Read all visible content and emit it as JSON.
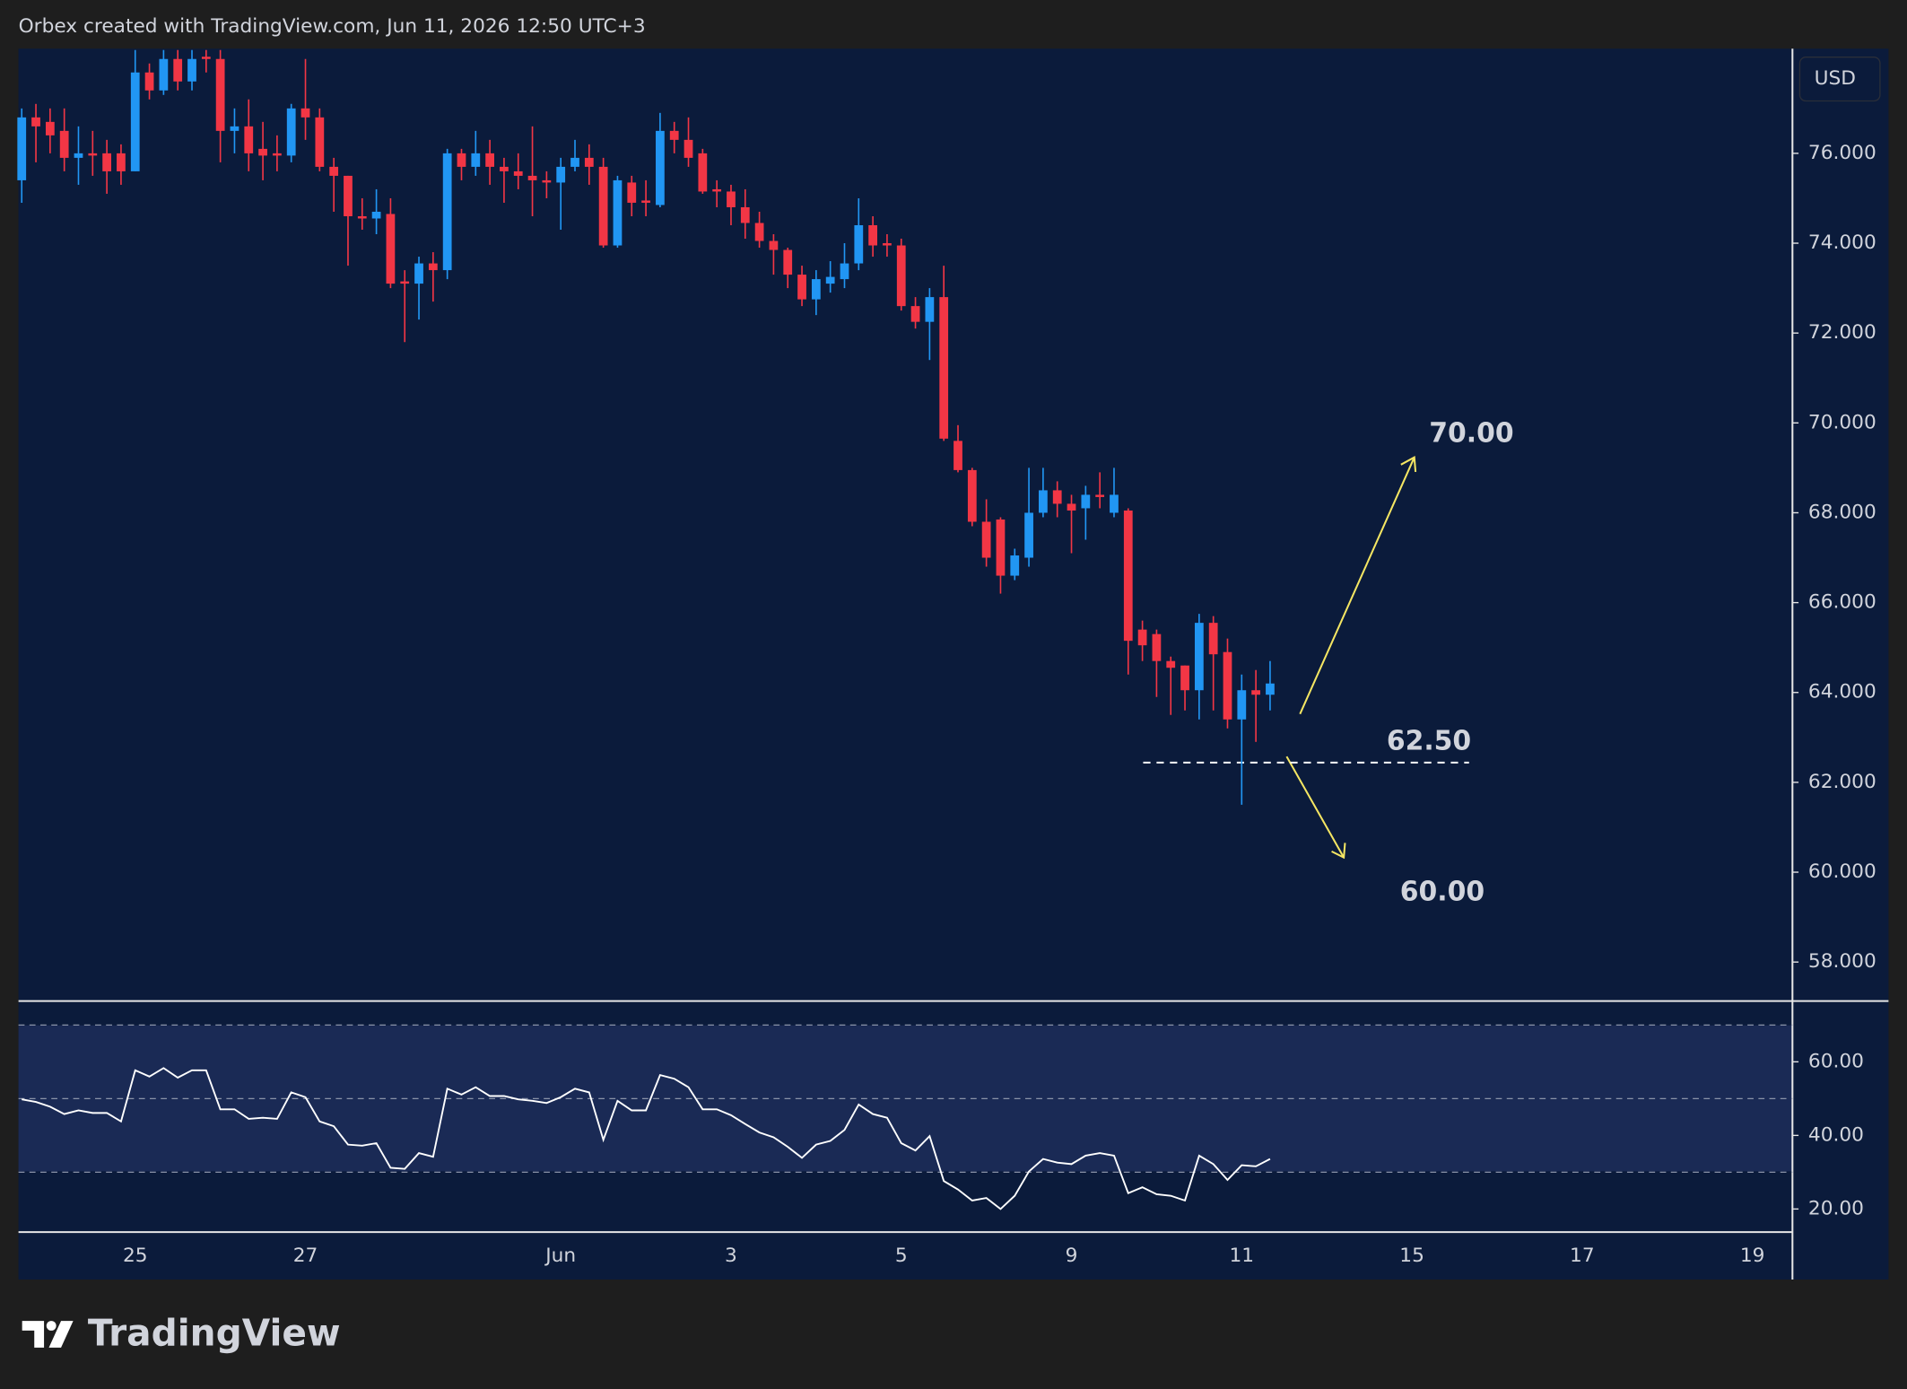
{
  "header": "Orbex created with TradingView.com, Jun 11, 2026 12:50 UTC+3",
  "currency": "USD",
  "logo": "TradingView",
  "chart_data": [
    {
      "type": "candlestick",
      "up_color": "#2196f3",
      "down_color": "#f23645",
      "categories": [
        null,
        null,
        null,
        null,
        null,
        null,
        null,
        null,
        "25",
        null,
        null,
        null,
        null,
        null,
        null,
        null,
        null,
        null,
        null,
        null,
        "27",
        null,
        null,
        null,
        null,
        null,
        null,
        null,
        null,
        null,
        null,
        null,
        null,
        null,
        null,
        null,
        null,
        null,
        "Jun",
        null,
        null,
        null,
        null,
        null,
        null,
        null,
        null,
        null,
        null,
        null,
        "3",
        null,
        null,
        null,
        null,
        null,
        null,
        null,
        null,
        null,
        null,
        null,
        "5",
        null,
        null,
        null,
        null,
        null,
        null,
        null,
        null,
        null,
        null,
        null,
        "9",
        null,
        null,
        null,
        null,
        null,
        null,
        null,
        null,
        null,
        null,
        null,
        "11",
        null,
        null,
        null,
        null,
        null,
        null,
        null,
        null,
        null,
        null,
        null,
        "15",
        null,
        null,
        null,
        null,
        null,
        null,
        null,
        null,
        null,
        null,
        null,
        "17",
        null,
        null,
        null,
        null,
        null,
        null,
        null,
        null,
        null,
        null,
        null,
        "19",
        null,
        null
      ],
      "open": [
        75.4,
        76.8,
        76.7,
        76.5,
        75.9,
        76.0,
        76.0,
        76.0,
        75.6,
        77.8,
        77.4,
        78.1,
        77.6,
        78.15,
        78.1,
        76.5,
        76.6,
        76.1,
        76.0,
        75.95,
        77.0,
        76.8,
        75.7,
        75.5,
        74.6,
        74.55,
        74.65,
        73.15,
        73.1,
        73.55,
        73.4,
        76.0,
        75.7,
        76.0,
        75.7,
        75.6,
        75.5,
        75.4,
        75.35,
        75.7,
        75.9,
        75.7,
        73.95,
        75.35,
        74.95,
        74.85,
        76.5,
        76.3,
        76.0,
        75.2,
        75.15,
        74.8,
        74.45,
        74.05,
        73.85,
        73.3,
        72.75,
        73.1,
        73.2,
        73.55,
        74.4,
        74.0,
        73.95,
        72.6,
        72.25,
        72.8,
        69.6,
        68.95,
        67.8,
        67.85,
        66.6,
        67.0,
        68.0,
        68.5,
        68.2,
        68.1,
        68.4,
        68.0,
        68.05,
        65.4,
        65.3,
        64.7,
        64.6,
        64.05,
        65.55,
        64.9,
        63.4,
        64.05,
        63.95,
        null,
        null,
        null,
        null,
        null,
        null,
        null,
        null,
        null,
        null,
        null,
        null,
        null,
        null,
        null,
        null,
        null,
        null,
        null,
        null,
        null,
        null,
        null,
        null,
        null,
        null,
        null,
        null,
        null,
        null,
        null,
        null,
        null,
        null,
        null,
        null
      ],
      "high": [
        77.0,
        77.1,
        77.0,
        77.0,
        76.6,
        76.5,
        76.3,
        76.2,
        78.3,
        78.0,
        78.3,
        78.3,
        78.3,
        78.3,
        78.3,
        77.0,
        77.2,
        76.7,
        76.4,
        77.1,
        78.1,
        77.0,
        75.9,
        75.5,
        75.0,
        75.2,
        75.0,
        73.4,
        73.7,
        73.8,
        76.1,
        76.1,
        76.5,
        76.3,
        75.9,
        76.0,
        76.6,
        75.6,
        75.9,
        76.3,
        76.2,
        75.9,
        75.5,
        75.5,
        75.4,
        76.9,
        76.7,
        76.8,
        76.1,
        75.4,
        75.3,
        75.2,
        74.7,
        74.2,
        73.9,
        73.5,
        73.4,
        73.6,
        74.0,
        75.0,
        74.6,
        74.2,
        74.1,
        72.8,
        73.0,
        73.5,
        69.95,
        69.0,
        68.3,
        67.9,
        67.2,
        69.0,
        69.0,
        68.7,
        68.4,
        68.6,
        68.9,
        69.0,
        68.1,
        65.6,
        65.4,
        64.8,
        64.6,
        65.75,
        65.7,
        65.2,
        64.4,
        64.5,
        64.7,
        null,
        null,
        null,
        null,
        null,
        null,
        null,
        null,
        null,
        null,
        null,
        null,
        null,
        null,
        null,
        null,
        null,
        null,
        null,
        null,
        null,
        null,
        null,
        null,
        null,
        null,
        null,
        null,
        null,
        null,
        null,
        null,
        null,
        null,
        null,
        null
      ],
      "low": [
        74.9,
        75.8,
        76.0,
        75.6,
        75.3,
        75.5,
        75.1,
        75.3,
        75.6,
        77.2,
        77.3,
        77.4,
        77.4,
        77.8,
        75.8,
        76.0,
        75.6,
        75.4,
        75.6,
        75.8,
        76.3,
        75.6,
        74.7,
        73.5,
        74.3,
        74.2,
        73.0,
        71.8,
        72.3,
        72.7,
        73.2,
        75.4,
        75.5,
        75.3,
        74.9,
        75.2,
        74.6,
        75.0,
        74.3,
        75.6,
        75.3,
        73.9,
        73.9,
        74.6,
        74.6,
        74.8,
        76.0,
        75.7,
        75.1,
        74.8,
        74.4,
        74.1,
        73.9,
        73.3,
        73.0,
        72.6,
        72.4,
        72.9,
        73.0,
        73.4,
        73.7,
        73.7,
        72.5,
        72.1,
        71.4,
        69.6,
        68.9,
        67.7,
        66.8,
        66.2,
        66.5,
        66.8,
        67.9,
        67.9,
        67.1,
        67.4,
        68.1,
        67.9,
        64.4,
        64.7,
        63.9,
        63.5,
        63.6,
        63.4,
        63.6,
        63.2,
        61.5,
        62.9,
        63.6,
        null,
        null,
        null,
        null,
        null,
        null,
        null,
        null,
        null,
        null,
        null,
        null,
        null,
        null,
        null,
        null,
        null,
        null,
        null,
        null,
        null,
        null,
        null,
        null,
        null,
        null,
        null,
        null,
        null,
        null,
        null,
        null,
        null,
        null,
        null,
        null
      ],
      "close": [
        76.8,
        76.6,
        76.4,
        75.9,
        76.0,
        75.95,
        75.6,
        75.6,
        77.8,
        77.4,
        78.1,
        77.6,
        78.1,
        78.1,
        76.5,
        76.6,
        76.0,
        75.95,
        75.95,
        77.0,
        76.8,
        75.7,
        75.5,
        74.6,
        74.55,
        74.7,
        73.1,
        73.1,
        73.55,
        73.4,
        76.0,
        75.7,
        76.0,
        75.7,
        75.6,
        75.5,
        75.4,
        75.35,
        75.7,
        75.9,
        75.7,
        73.95,
        75.4,
        74.9,
        74.9,
        76.5,
        76.3,
        75.9,
        75.15,
        75.15,
        74.8,
        74.45,
        74.05,
        73.85,
        73.3,
        72.75,
        73.2,
        73.25,
        73.55,
        74.4,
        73.95,
        73.95,
        72.6,
        72.25,
        72.8,
        69.65,
        68.95,
        67.8,
        67.0,
        66.6,
        67.05,
        68.0,
        68.5,
        68.2,
        68.05,
        68.4,
        68.35,
        68.4,
        65.15,
        65.05,
        64.7,
        64.55,
        64.05,
        65.55,
        64.85,
        63.4,
        64.05,
        63.95,
        64.2,
        null,
        null,
        null,
        null,
        null,
        null,
        null,
        null,
        null,
        null,
        null,
        null,
        null,
        null,
        null,
        null,
        null,
        null,
        null,
        null,
        null,
        null,
        null,
        null,
        null,
        null,
        null,
        null,
        null,
        null,
        null,
        null,
        null,
        null,
        null,
        null
      ],
      "ylim": [
        57.16,
        78.33
      ],
      "yticks": [
        {
          "value": 58,
          "label": "58.000"
        },
        {
          "value": 60,
          "label": "60.000"
        },
        {
          "value": 62,
          "label": "62.000"
        },
        {
          "value": 64,
          "label": "64.000"
        },
        {
          "value": 66,
          "label": "66.000"
        },
        {
          "value": 68,
          "label": "68.000"
        },
        {
          "value": 70,
          "label": "70.000"
        },
        {
          "value": 72,
          "label": "72.000"
        },
        {
          "value": 74,
          "label": "74.000"
        },
        {
          "value": 76,
          "label": "76.000"
        }
      ],
      "annotations": [
        "70.00",
        "62.50",
        "60.00"
      ]
    },
    {
      "type": "line",
      "color": "#ffffff",
      "values": [
        49.8,
        49.1,
        47.8,
        45.8,
        46.8,
        46.1,
        46.1,
        43.8,
        57.7,
        56.0,
        58.3,
        55.7,
        57.7,
        57.7,
        47.1,
        47.1,
        44.5,
        44.8,
        44.5,
        51.7,
        50.4,
        43.8,
        42.5,
        37.5,
        37.2,
        37.9,
        31.2,
        30.9,
        35.2,
        34.2,
        52.7,
        51.1,
        53.1,
        50.7,
        50.7,
        49.8,
        49.4,
        48.8,
        50.4,
        52.7,
        51.7,
        38.8,
        49.4,
        46.8,
        46.8,
        56.4,
        55.4,
        53.1,
        47.1,
        47.1,
        45.5,
        43.1,
        40.8,
        39.5,
        36.9,
        33.9,
        37.5,
        38.5,
        41.5,
        48.4,
        45.8,
        44.8,
        37.9,
        35.9,
        39.8,
        27.6,
        25.3,
        22.3,
        23.0,
        20.0,
        23.6,
        30.2,
        33.6,
        32.6,
        32.2,
        34.5,
        35.2,
        34.5,
        24.3,
        25.9,
        24.0,
        23.6,
        22.3,
        34.5,
        32.2,
        27.9,
        31.9,
        31.6,
        33.6,
        null,
        null,
        null,
        null,
        null,
        null,
        null,
        null,
        null,
        null,
        null,
        null,
        null,
        null,
        null,
        null,
        null,
        null,
        null,
        null,
        null,
        null,
        null,
        null,
        null,
        null,
        null,
        null,
        null,
        null,
        null,
        null,
        null,
        null,
        null,
        null
      ],
      "levels": [
        70,
        50,
        30
      ],
      "ylim": [
        13.72,
        76.53
      ],
      "yticks": [
        {
          "value": 20,
          "label": "20.00"
        },
        {
          "value": 40,
          "label": "40.00"
        },
        {
          "value": 60,
          "label": "60.00"
        }
      ]
    }
  ]
}
